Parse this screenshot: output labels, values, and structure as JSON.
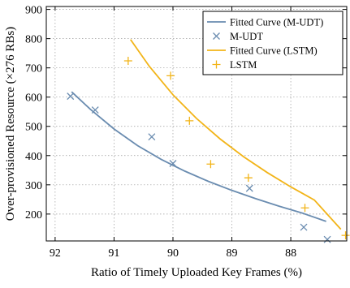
{
  "chart_data": {
    "type": "scatter",
    "title": "",
    "xlabel": "Ratio of Timely Uploaded Key Frames (%)",
    "ylabel": "Over-provisioned Resource (×276 RBs)",
    "x_reversed": true,
    "xlim": [
      92.15,
      87.05
    ],
    "ylim": [
      108,
      910
    ],
    "xticks": [
      92,
      91,
      90,
      89,
      88
    ],
    "xtick_labels": [
      "92",
      "91",
      "90",
      "89",
      "88"
    ],
    "yticks": [
      200,
      300,
      400,
      500,
      600,
      700,
      800,
      900
    ],
    "ytick_labels": [
      "200",
      "300",
      "400",
      "500",
      "600",
      "700",
      "800",
      "900"
    ],
    "grid": true,
    "legend_position": "top-right",
    "legend": [
      "Fitted Curve (M-UDT)",
      "M-UDT",
      "Fitted Curve (LSTM)",
      "LSTM"
    ],
    "series": [
      {
        "name": "Fitted Curve (M-UDT)",
        "kind": "line",
        "color": "#6a8cb0",
        "x": [
          91.72,
          91.4,
          91.0,
          90.6,
          90.2,
          89.8,
          89.4,
          89.0,
          88.6,
          88.2,
          87.8,
          87.4
        ],
        "y": [
          618,
          558,
          491,
          434,
          387,
          347,
          312,
          281,
          253,
          227,
          203,
          175
        ]
      },
      {
        "name": "M-UDT",
        "kind": "scatter",
        "marker": "x",
        "color": "#6a8cb0",
        "x": [
          91.74,
          91.32,
          90.36,
          90.0,
          88.7,
          87.78,
          87.38
        ],
        "y": [
          603,
          556,
          464,
          373,
          288,
          155,
          113
        ]
      },
      {
        "name": "Fitted Curve (LSTM)",
        "kind": "line",
        "color": "#f2b418",
        "x": [
          90.72,
          90.4,
          90.0,
          89.6,
          89.2,
          88.8,
          88.4,
          88.0,
          87.6,
          87.15
        ],
        "y": [
          797,
          705,
          608,
          527,
          457,
          396,
          342,
          293,
          248,
          148
        ]
      },
      {
        "name": "LSTM",
        "kind": "scatter",
        "marker": "+",
        "color": "#f2b418",
        "x": [
          90.76,
          90.04,
          89.72,
          89.36,
          88.72,
          87.76,
          87.07
        ],
        "y": [
          724,
          673,
          519,
          371,
          324,
          221,
          127
        ]
      }
    ]
  }
}
